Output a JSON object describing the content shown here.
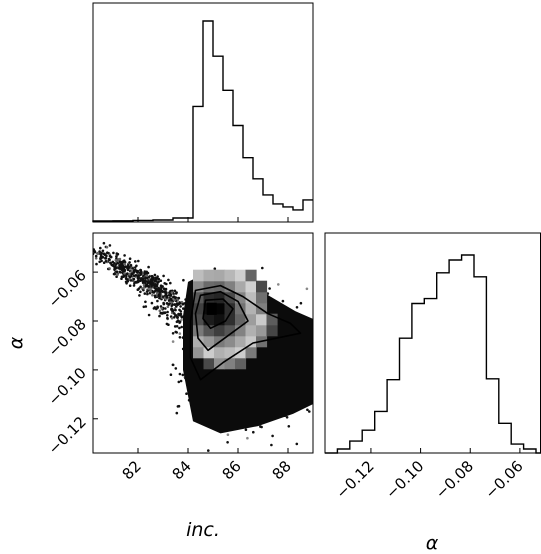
{
  "chart_data": [
    {
      "type": "histogram",
      "panel": "inc marginal",
      "variable": "inc.",
      "xlim": [
        80.2,
        89.0
      ],
      "bins": [
        {
          "x0": 80.2,
          "x1": 81.0,
          "count": 0.005
        },
        {
          "x0": 81.0,
          "x1": 81.8,
          "count": 0.006
        },
        {
          "x0": 81.8,
          "x1": 82.6,
          "count": 0.008
        },
        {
          "x0": 82.6,
          "x1": 83.4,
          "count": 0.01
        },
        {
          "x0": 83.4,
          "x1": 84.2,
          "count": 0.02
        },
        {
          "x0": 84.2,
          "x1": 84.6,
          "count": 0.575
        },
        {
          "x0": 84.6,
          "x1": 85.0,
          "count": 1.0
        },
        {
          "x0": 85.0,
          "x1": 85.4,
          "count": 0.825
        },
        {
          "x0": 85.4,
          "x1": 85.8,
          "count": 0.655
        },
        {
          "x0": 85.8,
          "x1": 86.2,
          "count": 0.48
        },
        {
          "x0": 86.2,
          "x1": 86.6,
          "count": 0.32
        },
        {
          "x0": 86.6,
          "x1": 87.0,
          "count": 0.215
        },
        {
          "x0": 87.0,
          "x1": 87.4,
          "count": 0.135
        },
        {
          "x0": 87.4,
          "x1": 87.8,
          "count": 0.09
        },
        {
          "x0": 87.8,
          "x1": 88.2,
          "count": 0.075
        },
        {
          "x0": 88.2,
          "x1": 88.6,
          "count": 0.06
        },
        {
          "x0": 88.6,
          "x1": 89.0,
          "count": 0.11
        }
      ]
    },
    {
      "type": "histogram2d",
      "panel": "inc vs alpha",
      "x_variable": "inc.",
      "y_variable": "α",
      "xlim": [
        80.2,
        89.0
      ],
      "ylim": [
        -0.134,
        -0.044
      ],
      "xticks": [
        "82",
        "84",
        "86",
        "88"
      ],
      "yticks": [
        "−0.06",
        "−0.08",
        "−0.10",
        "−0.12"
      ],
      "peak": {
        "x": 85.1,
        "y": -0.0755
      },
      "contour_levels": [
        "inner",
        "middle",
        "outer"
      ],
      "scatter_tails": [
        {
          "description_points": [
            [
              80.3,
              -0.052
            ],
            [
              82.8,
              -0.066
            ]
          ]
        },
        {
          "description_points": [
            [
              81.0,
              -0.058
            ],
            [
              83.6,
              -0.072
            ]
          ]
        }
      ]
    },
    {
      "type": "histogram",
      "panel": "alpha marginal",
      "variable": "α",
      "xlim": [
        -0.1385,
        -0.0515
      ],
      "xticks": [
        "−0.12",
        "−0.10",
        "−0.08",
        "−0.06"
      ],
      "bins": [
        {
          "x0": -0.1385,
          "x1": -0.1335,
          "count": 0.0
        },
        {
          "x0": -0.1335,
          "x1": -0.1285,
          "count": 0.02
        },
        {
          "x0": -0.1285,
          "x1": -0.1235,
          "count": 0.06
        },
        {
          "x0": -0.1235,
          "x1": -0.1185,
          "count": 0.115
        },
        {
          "x0": -0.1185,
          "x1": -0.1135,
          "count": 0.21
        },
        {
          "x0": -0.1135,
          "x1": -0.1085,
          "count": 0.37
        },
        {
          "x0": -0.1085,
          "x1": -0.1035,
          "count": 0.58
        },
        {
          "x0": -0.1035,
          "x1": -0.0985,
          "count": 0.755
        },
        {
          "x0": -0.0985,
          "x1": -0.0935,
          "count": 0.78
        },
        {
          "x0": -0.0935,
          "x1": -0.0885,
          "count": 0.91
        },
        {
          "x0": -0.0885,
          "x1": -0.0835,
          "count": 0.975
        },
        {
          "x0": -0.0835,
          "x1": -0.0785,
          "count": 1.0
        },
        {
          "x0": -0.0785,
          "x1": -0.0735,
          "count": 0.89
        },
        {
          "x0": -0.0735,
          "x1": -0.0685,
          "count": 0.375
        },
        {
          "x0": -0.0685,
          "x1": -0.0635,
          "count": 0.15
        },
        {
          "x0": -0.0635,
          "x1": -0.0585,
          "count": 0.045
        },
        {
          "x0": -0.0585,
          "x1": -0.0535,
          "count": 0.02
        },
        {
          "x0": -0.0535,
          "x1": -0.0515,
          "count": 0.0
        }
      ]
    }
  ],
  "labels": {
    "inc_axis": "inc.",
    "alpha_axis_left": "α",
    "alpha_axis_bottom": "α"
  }
}
